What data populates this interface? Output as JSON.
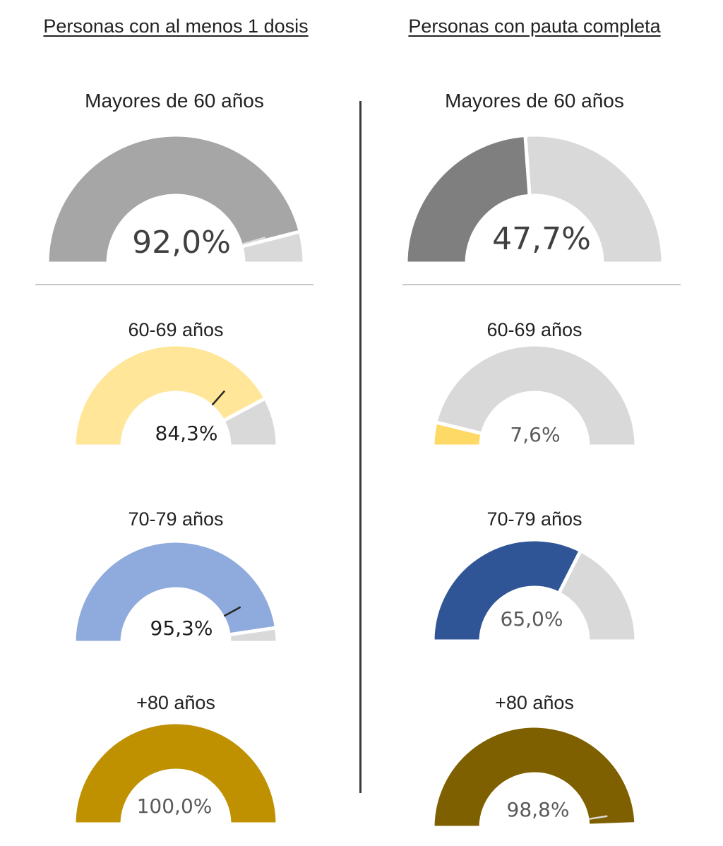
{
  "columns": [
    {
      "header": "Personas con al menos 1 dosis"
    },
    {
      "header": "Personas con pauta completa"
    }
  ],
  "chart_data": [
    {
      "type": "gauge",
      "title": "Mayores de 60 años",
      "value": 92.0,
      "label": "92,0%",
      "range": [
        0,
        100
      ],
      "fill_color": "#a6a6a6",
      "remainder_color": "#d9d9d9",
      "marker_value": 91
    },
    {
      "type": "gauge",
      "title": "60-69 años",
      "value": 84.3,
      "label": "84,3%",
      "range": [
        0,
        100
      ],
      "fill_color": "#ffe699",
      "remainder_color": "#d9d9d9",
      "marker_value": 73
    },
    {
      "type": "gauge",
      "title": "70-79 años",
      "value": 95.3,
      "label": "95,3%",
      "range": [
        0,
        100
      ],
      "fill_color": "#8faadc",
      "remainder_color": "#d9d9d9",
      "marker_value": 84
    },
    {
      "type": "gauge",
      "title": "+80 años",
      "value": 100.0,
      "label": "100,0%",
      "range": [
        0,
        100
      ],
      "fill_color": "#bf9000",
      "remainder_color": "#d9d9d9"
    },
    {
      "type": "gauge",
      "title": "Mayores de 60 años",
      "value": 47.7,
      "label": "47,7%",
      "range": [
        0,
        100
      ],
      "fill_color": "#7f7f7f",
      "remainder_color": "#d9d9d9"
    },
    {
      "type": "gauge",
      "title": "60-69 años",
      "value": 7.6,
      "label": "7,6%",
      "range": [
        0,
        100
      ],
      "fill_color": "#ffd966",
      "remainder_color": "#d9d9d9"
    },
    {
      "type": "gauge",
      "title": "70-79 años",
      "value": 65.0,
      "label": "65,0%",
      "range": [
        0,
        100
      ],
      "fill_color": "#2f5597",
      "remainder_color": "#d9d9d9"
    },
    {
      "type": "gauge",
      "title": "+80 años",
      "value": 98.8,
      "label": "98,8%",
      "range": [
        0,
        100
      ],
      "fill_color": "#7f6000",
      "remainder_color": "#d9d9d9",
      "marker_value": 95
    }
  ]
}
